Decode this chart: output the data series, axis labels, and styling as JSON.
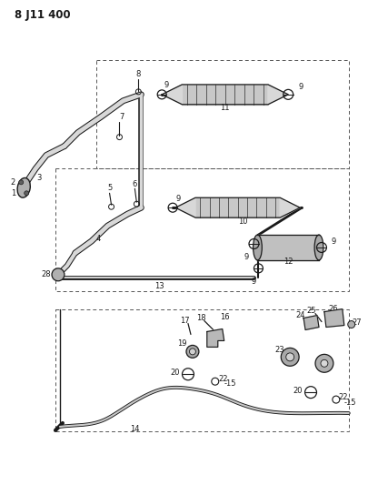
{
  "title": "8 J11 400",
  "bg_color": "#ffffff",
  "line_color": "#1a1a1a",
  "text_color": "#1a1a1a",
  "fig_width": 4.05,
  "fig_height": 5.33,
  "dpi": 100
}
